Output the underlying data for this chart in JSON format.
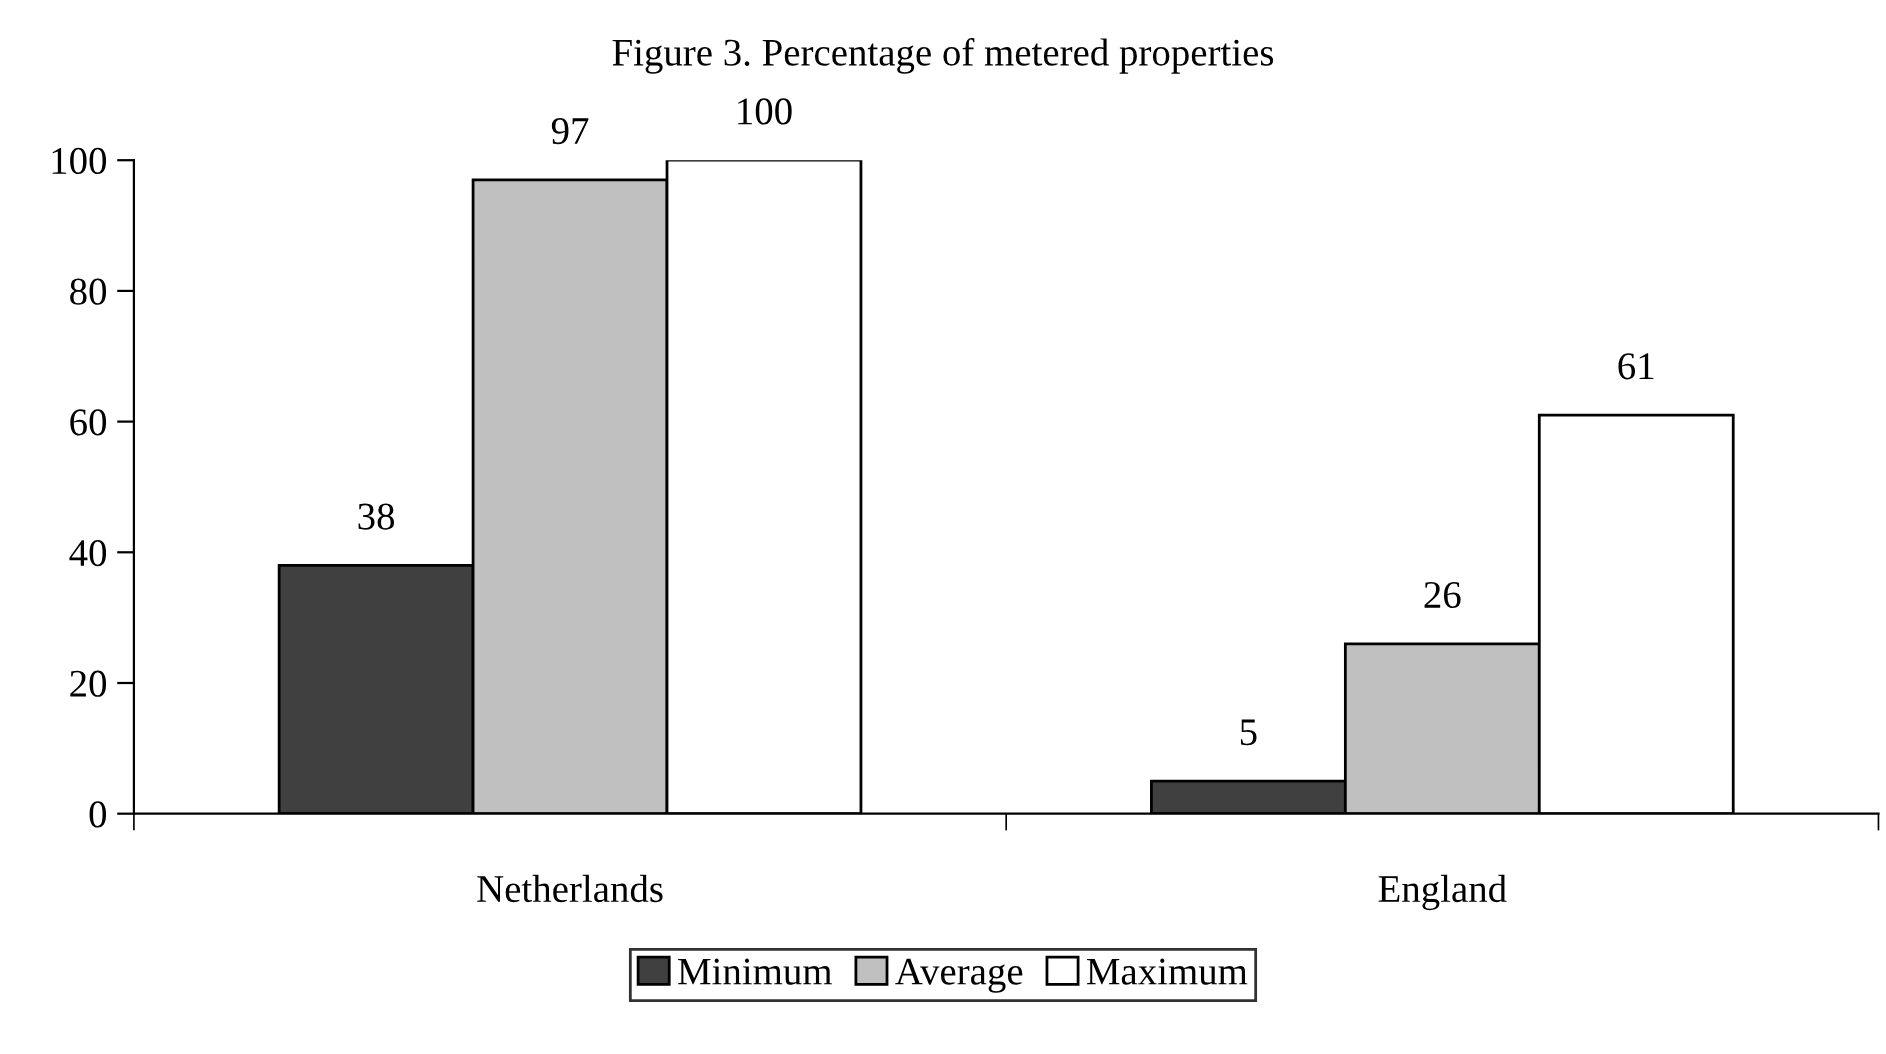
{
  "chart_data": {
    "type": "bar",
    "title": "Figure 3. Percentage of metered properties",
    "categories": [
      "Netherlands",
      "England"
    ],
    "series": [
      {
        "name": "Minimum",
        "color": "#404040",
        "values": [
          38,
          5
        ]
      },
      {
        "name": "Average",
        "color": "#c0c0c0",
        "values": [
          97,
          26
        ]
      },
      {
        "name": "Maximum",
        "color": "#ffffff",
        "values": [
          100,
          61
        ]
      }
    ],
    "ylim": [
      0,
      100
    ],
    "yticks": [
      0,
      20,
      40,
      60,
      80,
      100
    ],
    "data_labels": true,
    "legend": "bottom",
    "grid": false
  }
}
